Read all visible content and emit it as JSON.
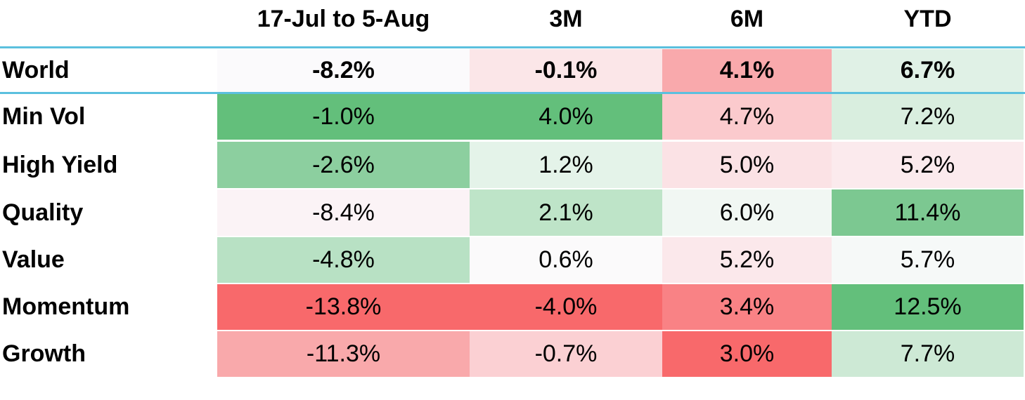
{
  "chart_data": {
    "type": "heatmap",
    "columns": [
      "17-Jul to 5-Aug",
      "3M",
      "6M",
      "YTD"
    ],
    "rows": [
      {
        "label": "World",
        "values": [
          "-8.2%",
          "-0.1%",
          "4.1%",
          "6.7%"
        ],
        "colors": [
          "#fbfafc",
          "#fbe6e8",
          "#f9a9ac",
          "#e0f1e6"
        ],
        "bold": true
      },
      {
        "label": "Min Vol",
        "values": [
          "-1.0%",
          "4.0%",
          "4.7%",
          "7.2%"
        ],
        "colors": [
          "#63bf7b",
          "#63bf7b",
          "#fbcacd",
          "#d9eedf"
        ],
        "bold": false
      },
      {
        "label": "High Yield",
        "values": [
          "-2.6%",
          "1.2%",
          "5.0%",
          "5.2%"
        ],
        "colors": [
          "#8ccf9f",
          "#e4f3e9",
          "#fbe2e5",
          "#fbeaed"
        ],
        "bold": false
      },
      {
        "label": "Quality",
        "values": [
          "-8.4%",
          "2.1%",
          "6.0%",
          "11.4%"
        ],
        "colors": [
          "#fbf3f6",
          "#bee4c8",
          "#f1f7f3",
          "#7cc891"
        ],
        "bold": false
      },
      {
        "label": "Value",
        "values": [
          "-4.8%",
          "0.6%",
          "5.2%",
          "5.7%"
        ],
        "colors": [
          "#b8e1c4",
          "#fbfafb",
          "#fbe8eb",
          "#f6f9f8"
        ],
        "bold": false
      },
      {
        "label": "Momentum",
        "values": [
          "-13.8%",
          "-4.0%",
          "3.4%",
          "12.5%"
        ],
        "colors": [
          "#f8696b",
          "#f8696b",
          "#f98285",
          "#63bf7b"
        ],
        "bold": false
      },
      {
        "label": "Growth",
        "values": [
          "-11.3%",
          "-0.7%",
          "3.0%",
          "7.7%"
        ],
        "colors": [
          "#f9a9ab",
          "#fbd0d3",
          "#f8696b",
          "#cde9d5"
        ],
        "bold": false
      }
    ]
  }
}
